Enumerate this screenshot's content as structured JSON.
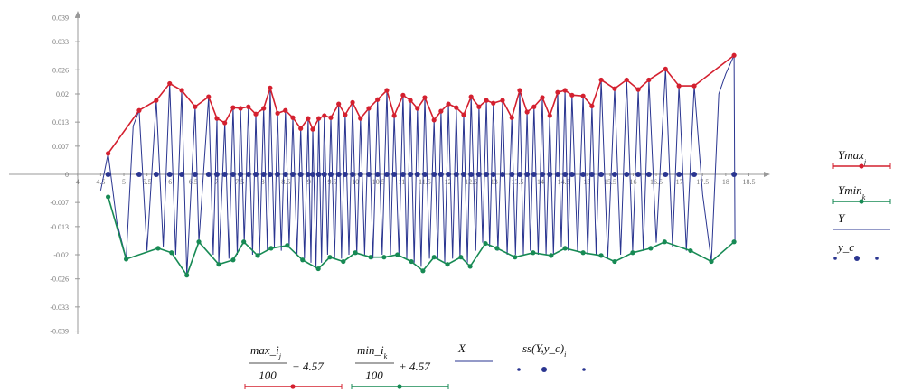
{
  "chart_data": {
    "type": "line",
    "xlim": [
      2.52,
      18.92
    ],
    "ylim": [
      -0.04,
      0.04
    ],
    "xticks": [
      4,
      4.5,
      5,
      5.5,
      6,
      6.5,
      7,
      7.5,
      8,
      8.5,
      9,
      9.5,
      10,
      10.5,
      11,
      11.5,
      12,
      12.5,
      13,
      13.5,
      14,
      14.5,
      15,
      15.5,
      16,
      16.5,
      17,
      17.5,
      18,
      18.5
    ],
    "yticks": [
      0.039,
      0.033,
      0.026,
      0.02,
      0.013,
      0.007,
      0,
      -0.007,
      -0.013,
      -0.02,
      -0.026,
      -0.033,
      -0.039
    ],
    "series": [
      {
        "name": "Ymax",
        "subscript": "j",
        "color": "#d4202f",
        "line": true,
        "markers": true,
        "x": [
          4.66,
          5.33,
          5.7,
          5.99,
          6.25,
          6.54,
          6.83,
          7.01,
          7.18,
          7.36,
          7.52,
          7.69,
          7.85,
          8.02,
          8.16,
          8.32,
          8.49,
          8.65,
          8.82,
          8.98,
          9.08,
          9.21,
          9.33,
          9.47,
          9.64,
          9.78,
          9.94,
          10.11,
          10.29,
          10.48,
          10.68,
          10.84,
          11.03,
          11.19,
          11.34,
          11.5,
          11.7,
          11.85,
          12.01,
          12.18,
          12.34,
          12.5,
          12.67,
          12.83,
          12.98,
          13.18,
          13.38,
          13.55,
          13.71,
          13.86,
          14.04,
          14.2,
          14.37,
          14.53,
          14.68,
          14.92,
          15.11,
          15.31,
          15.6,
          15.86,
          16.11,
          16.34,
          16.7,
          16.99,
          17.32,
          18.18
        ],
        "values": [
          0.0052,
          0.0159,
          0.0184,
          0.0226,
          0.0209,
          0.0168,
          0.0193,
          0.0139,
          0.0128,
          0.0166,
          0.0164,
          0.0168,
          0.015,
          0.0164,
          0.0215,
          0.0152,
          0.0159,
          0.0141,
          0.0114,
          0.0139,
          0.0112,
          0.0139,
          0.0146,
          0.0141,
          0.0175,
          0.0148,
          0.0179,
          0.0139,
          0.0164,
          0.0186,
          0.0209,
          0.0146,
          0.0197,
          0.0184,
          0.0164,
          0.0191,
          0.0135,
          0.0157,
          0.0175,
          0.0166,
          0.0148,
          0.0193,
          0.0168,
          0.0184,
          0.0177,
          0.0184,
          0.0141,
          0.0209,
          0.0155,
          0.0168,
          0.0191,
          0.0146,
          0.0204,
          0.0209,
          0.0197,
          0.0195,
          0.017,
          0.0235,
          0.0213,
          0.0235,
          0.0211,
          0.0235,
          0.0262,
          0.022,
          0.022,
          0.0296
        ]
      },
      {
        "name": "Ymin",
        "subscript": "k",
        "color": "#178a54",
        "line": true,
        "markers": true,
        "x": [
          4.66,
          5.05,
          5.74,
          6.03,
          6.36,
          6.62,
          7.05,
          7.36,
          7.59,
          7.89,
          8.18,
          8.53,
          8.86,
          9.2,
          9.45,
          9.74,
          10.0,
          10.33,
          10.62,
          10.91,
          11.21,
          11.46,
          11.7,
          11.99,
          12.28,
          12.48,
          12.81,
          13.06,
          13.45,
          13.84,
          14.23,
          14.53,
          14.92,
          15.31,
          15.6,
          15.99,
          16.38,
          16.68,
          17.24,
          17.69,
          18.18
        ],
        "values": [
          -0.0056,
          -0.0211,
          -0.0184,
          -0.0195,
          -0.0251,
          -0.0168,
          -0.0224,
          -0.0213,
          -0.0168,
          -0.0202,
          -0.0184,
          -0.0177,
          -0.0213,
          -0.0235,
          -0.0206,
          -0.0217,
          -0.0195,
          -0.0206,
          -0.0206,
          -0.02,
          -0.0217,
          -0.024,
          -0.0206,
          -0.0224,
          -0.0206,
          -0.0229,
          -0.0172,
          -0.0184,
          -0.0206,
          -0.0195,
          -0.0202,
          -0.0184,
          -0.0195,
          -0.0202,
          -0.0217,
          -0.0195,
          -0.0184,
          -0.0168,
          -0.019,
          -0.0217,
          -0.0168
        ]
      },
      {
        "name": "Y",
        "color": "#2a3590",
        "line": true,
        "markers": false,
        "x": [
          4.5,
          4.66,
          4.85,
          5.05,
          5.2,
          5.33,
          5.5,
          5.7,
          5.85,
          5.99,
          6.12,
          6.25,
          6.36,
          6.54,
          6.62,
          6.83,
          6.93,
          7.01,
          7.05,
          7.18,
          7.27,
          7.36,
          7.45,
          7.52,
          7.6,
          7.69,
          7.78,
          7.85,
          7.93,
          8.02,
          8.1,
          8.16,
          8.25,
          8.32,
          8.4,
          8.49,
          8.57,
          8.65,
          8.74,
          8.82,
          8.9,
          8.98,
          9.04,
          9.08,
          9.15,
          9.21,
          9.27,
          9.33,
          9.4,
          9.47,
          9.55,
          9.64,
          9.7,
          9.78,
          9.86,
          9.94,
          10.03,
          10.11,
          10.2,
          10.29,
          10.38,
          10.48,
          10.58,
          10.68,
          10.76,
          10.84,
          10.94,
          11.03,
          11.11,
          11.19,
          11.27,
          11.34,
          11.42,
          11.5,
          11.6,
          11.7,
          11.78,
          11.85,
          11.93,
          12.01,
          12.1,
          12.18,
          12.26,
          12.34,
          12.42,
          12.5,
          12.6,
          12.67,
          12.75,
          12.83,
          12.9,
          12.98,
          13.08,
          13.18,
          13.28,
          13.38,
          13.46,
          13.55,
          13.63,
          13.71,
          13.78,
          13.86,
          13.95,
          14.04,
          14.12,
          14.2,
          14.28,
          14.37,
          14.45,
          14.53,
          14.6,
          14.68,
          14.8,
          14.92,
          15.02,
          15.11,
          15.2,
          15.31,
          15.45,
          15.6,
          15.73,
          15.86,
          15.99,
          16.11,
          16.22,
          16.34,
          16.5,
          16.7,
          16.85,
          16.99,
          17.15,
          17.32,
          17.5,
          17.69,
          17.85,
          18.0,
          18.18,
          18.2
        ],
        "values": [
          -0.004,
          0.0052,
          -0.012,
          -0.021,
          0.012,
          0.0159,
          -0.019,
          0.0184,
          -0.018,
          0.0226,
          -0.02,
          0.0209,
          -0.025,
          0.0168,
          -0.0168,
          0.0193,
          -0.02,
          0.0139,
          -0.0224,
          0.0128,
          -0.021,
          0.0166,
          -0.02,
          0.0164,
          -0.017,
          0.0168,
          -0.02,
          0.015,
          -0.02,
          0.0164,
          -0.019,
          0.0215,
          -0.018,
          0.0152,
          -0.019,
          0.0159,
          -0.018,
          0.0141,
          -0.02,
          0.0114,
          -0.021,
          0.0139,
          -0.022,
          0.0112,
          -0.023,
          0.0139,
          -0.022,
          0.0146,
          -0.02,
          0.0141,
          -0.021,
          0.0175,
          -0.021,
          0.0148,
          -0.02,
          0.0179,
          -0.02,
          0.0139,
          -0.02,
          0.0164,
          -0.021,
          0.0186,
          -0.02,
          0.0209,
          -0.02,
          0.0146,
          -0.02,
          0.0197,
          -0.021,
          0.0184,
          -0.022,
          0.0164,
          -0.023,
          0.0191,
          -0.021,
          0.0135,
          -0.021,
          0.0157,
          -0.022,
          0.0175,
          -0.021,
          0.0166,
          -0.021,
          0.0148,
          -0.022,
          0.0193,
          -0.019,
          0.0168,
          -0.017,
          0.0184,
          -0.018,
          0.0177,
          -0.019,
          0.0184,
          -0.02,
          0.0141,
          -0.02,
          0.0209,
          -0.02,
          0.0155,
          -0.019,
          0.0168,
          -0.02,
          0.0191,
          -0.02,
          0.0146,
          -0.02,
          0.0204,
          -0.018,
          0.0209,
          -0.019,
          0.0197,
          -0.019,
          0.0195,
          -0.02,
          0.017,
          -0.02,
          0.0235,
          -0.021,
          0.0213,
          -0.02,
          0.0235,
          -0.019,
          0.0211,
          -0.019,
          0.0235,
          -0.017,
          0.0262,
          -0.018,
          0.022,
          -0.019,
          0.022,
          -0.005,
          -0.0217,
          0.02,
          0.025,
          0.0296,
          -0.0168
        ]
      },
      {
        "name": "y_c",
        "color": "#2a3590",
        "line": false,
        "markers": true,
        "x": [
          4.66,
          5.33,
          5.7,
          5.99,
          6.25,
          6.54,
          6.83,
          7.01,
          7.18,
          7.36,
          7.52,
          7.69,
          7.85,
          8.02,
          8.16,
          8.32,
          8.49,
          8.65,
          8.82,
          8.98,
          9.08,
          9.21,
          9.33,
          9.47,
          9.64,
          9.78,
          9.94,
          10.11,
          10.29,
          10.48,
          10.68,
          10.84,
          11.03,
          11.19,
          11.34,
          11.5,
          11.7,
          11.85,
          12.01,
          12.18,
          12.34,
          12.5,
          12.67,
          12.83,
          12.98,
          13.18,
          13.38,
          13.55,
          13.71,
          13.86,
          14.04,
          14.2,
          14.37,
          14.53,
          14.68,
          14.92,
          15.11,
          15.31,
          15.6,
          15.86,
          16.11,
          16.34,
          16.7,
          16.99,
          17.32,
          18.18
        ],
        "values": [
          0,
          0,
          0,
          0,
          0,
          0,
          0,
          0,
          0,
          0,
          0,
          0,
          0,
          0,
          0,
          0,
          0,
          0,
          0,
          0,
          0,
          0,
          0,
          0,
          0,
          0,
          0,
          0,
          0,
          0,
          0,
          0,
          0,
          0,
          0,
          0,
          0,
          0,
          0,
          0,
          0,
          0,
          0,
          0,
          0,
          0,
          0,
          0,
          0,
          0,
          0,
          0,
          0,
          0,
          0,
          0,
          0,
          0,
          0,
          0,
          0,
          0,
          0,
          0,
          0,
          0
        ]
      }
    ],
    "x_labels": [
      {
        "numerator": "max_i",
        "subscript": "j",
        "denominator": "100",
        "tail": "+ 4.57",
        "color": "#d4202f"
      },
      {
        "numerator": "min_i",
        "subscript": "k",
        "denominator": "100",
        "tail": "+ 4.57",
        "color": "#178a54"
      },
      {
        "text": "X",
        "color": "#2a3590"
      },
      {
        "text": "ss(Y,y_c)",
        "subscript": "i",
        "color": "#2a3590"
      }
    ]
  }
}
